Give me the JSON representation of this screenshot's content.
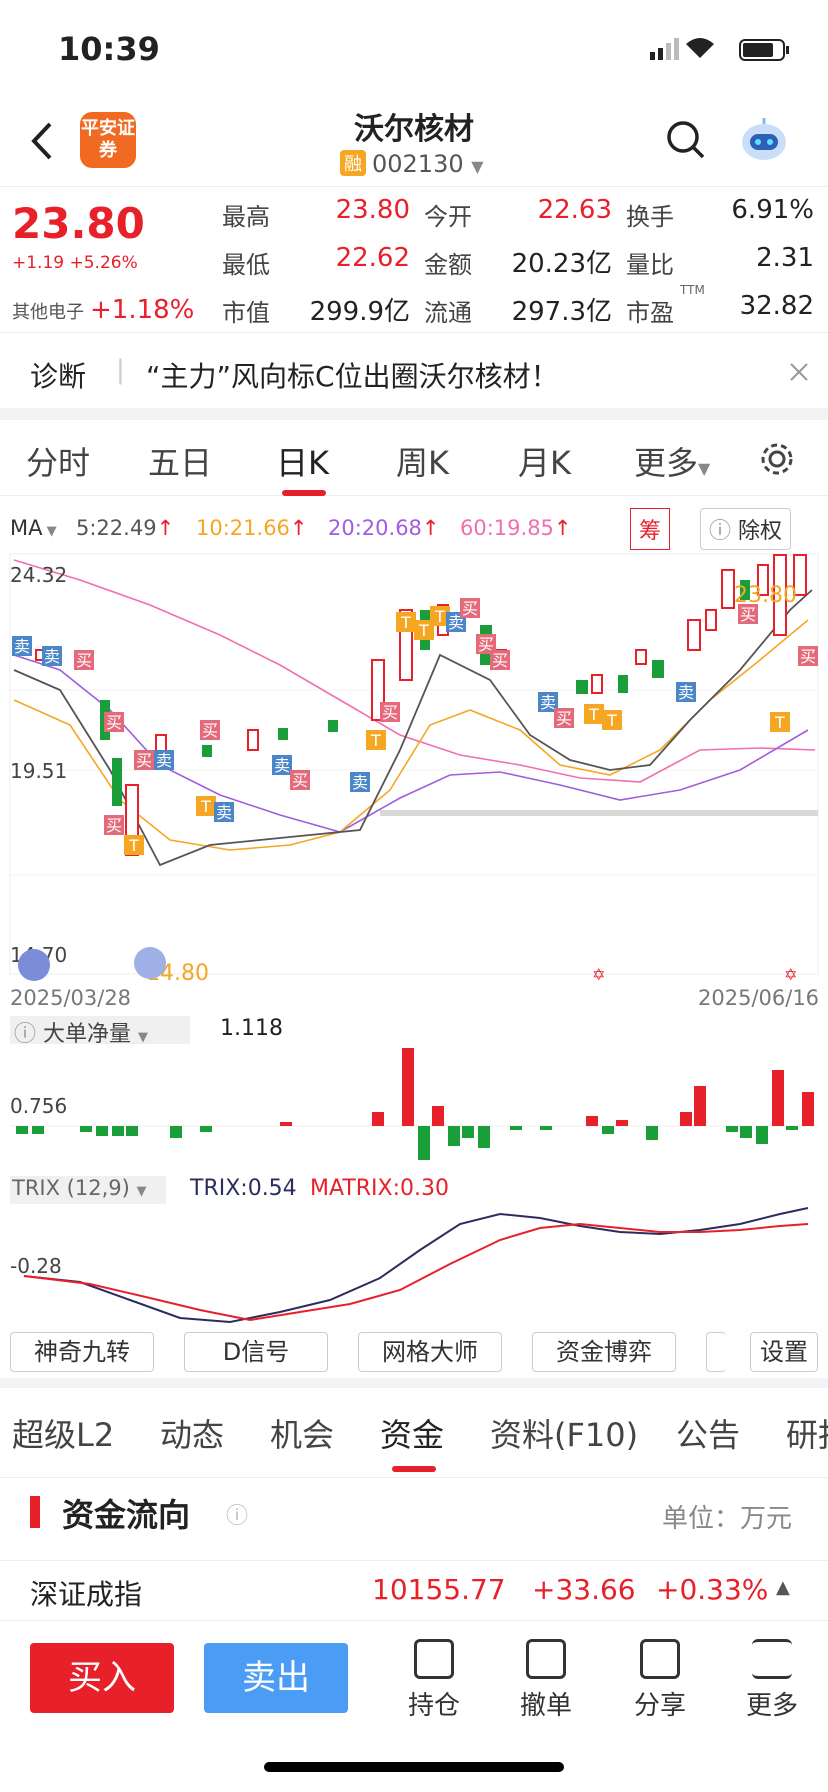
{
  "status_bar": {
    "time": "10:39"
  },
  "header": {
    "logo_text": "平安证券",
    "stock_name": "沃尔核材",
    "margin_badge": "融",
    "stock_code": "002130"
  },
  "quote": {
    "price": "23.80",
    "change": "+1.19 +5.26%",
    "sector_name": "其他电子",
    "sector_change": "+1.18%",
    "fields": [
      {
        "label": "最高",
        "value": "23.80",
        "color": "red"
      },
      {
        "label": "今开",
        "value": "22.63",
        "color": "red"
      },
      {
        "label": "换手",
        "value": "6.91%",
        "color": "black"
      },
      {
        "label": "最低",
        "value": "22.62",
        "color": "red"
      },
      {
        "label": "金额",
        "value": "20.23亿",
        "color": "black"
      },
      {
        "label": "量比",
        "value": "2.31",
        "color": "black"
      },
      {
        "label": "市值",
        "value": "299.9亿",
        "color": "black"
      },
      {
        "label": "流通",
        "value": "297.3亿",
        "color": "black"
      },
      {
        "label": "市盈",
        "value": "32.82",
        "color": "black"
      }
    ],
    "pe_sup": "TTM"
  },
  "diagnosis": {
    "label": "诊断",
    "text": "“主力”风向标C位出圈沃尔核材！"
  },
  "period_tabs": [
    "分时",
    "五日",
    "日K",
    "周K",
    "月K",
    "更多"
  ],
  "active_period": "日K",
  "ma": {
    "label": "MA",
    "items": [
      {
        "text": "5:22.49",
        "color": "#555555"
      },
      {
        "text": "10:21.66",
        "color": "#f5a623"
      },
      {
        "text": "20:20.68",
        "color": "#a05de0"
      },
      {
        "text": "60:19.85",
        "color": "#f06fb0"
      }
    ],
    "chip_button": "筹",
    "exright_button": "除权"
  },
  "kline": {
    "y_top": "24.32",
    "y_mid": "19.51",
    "y_bottom": "14.70",
    "high_label": "23.80",
    "low_label": "14.80",
    "date_start": "2025/03/28",
    "date_end": "2025/06/16"
  },
  "volume_panel": {
    "label": "大单净量",
    "value": "1.118",
    "axis": "0.756"
  },
  "trix_panel": {
    "label": "TRIX (12,9)",
    "trix": "TRIX:0.54",
    "matrix": "MATRIX:0.30",
    "axis": "-0.28"
  },
  "tools": [
    "神奇九转",
    "D信号",
    "网格大师",
    "资金博弈",
    "设置"
  ],
  "bottom_tabs": [
    "超级L2",
    "动态",
    "机会",
    "资金",
    "资料(F10)",
    "公告",
    "研报"
  ],
  "active_bottom_tab": "资金",
  "fund_flow": {
    "title": "资金流向",
    "unit": "单位：万元"
  },
  "index_bar": {
    "name": "深证成指",
    "value": "10155.77",
    "change": "+33.66",
    "pct": "+0.33%"
  },
  "footer": {
    "buy": "买入",
    "sell": "卖出",
    "items": [
      "持仓",
      "撤单",
      "分享",
      "更多"
    ]
  },
  "colors": {
    "up": "#e8202a",
    "down": "#1a9e3a",
    "sell_btn": "#4a9cf5",
    "accent": "#f06a22"
  }
}
